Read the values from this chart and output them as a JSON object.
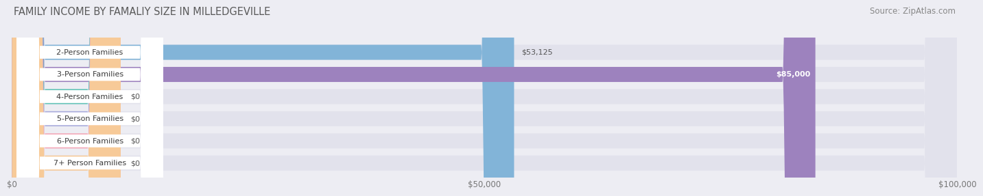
{
  "title": "FAMILY INCOME BY FAMALIY SIZE IN MILLEDGEVILLE",
  "source": "Source: ZipAtlas.com",
  "categories": [
    "2-Person Families",
    "3-Person Families",
    "4-Person Families",
    "5-Person Families",
    "6-Person Families",
    "7+ Person Families"
  ],
  "values": [
    53125,
    85000,
    0,
    0,
    0,
    0
  ],
  "bar_colors": [
    "#82b4d8",
    "#9d82be",
    "#62c4b8",
    "#a8aadc",
    "#f5a8b8",
    "#f7ca98"
  ],
  "value_labels": [
    "$53,125",
    "$85,000",
    "$0",
    "$0",
    "$0",
    "$0"
  ],
  "xlim_max": 100000,
  "xticks": [
    0,
    50000,
    100000
  ],
  "xticklabels": [
    "$0",
    "$50,000",
    "$100,000"
  ],
  "bg_color": "#ededf3",
  "bar_bg_color": "#e2e2ec",
  "title_fontsize": 10.5,
  "source_fontsize": 8.5,
  "bar_label_fontsize": 8.0,
  "value_fontsize": 8.0
}
